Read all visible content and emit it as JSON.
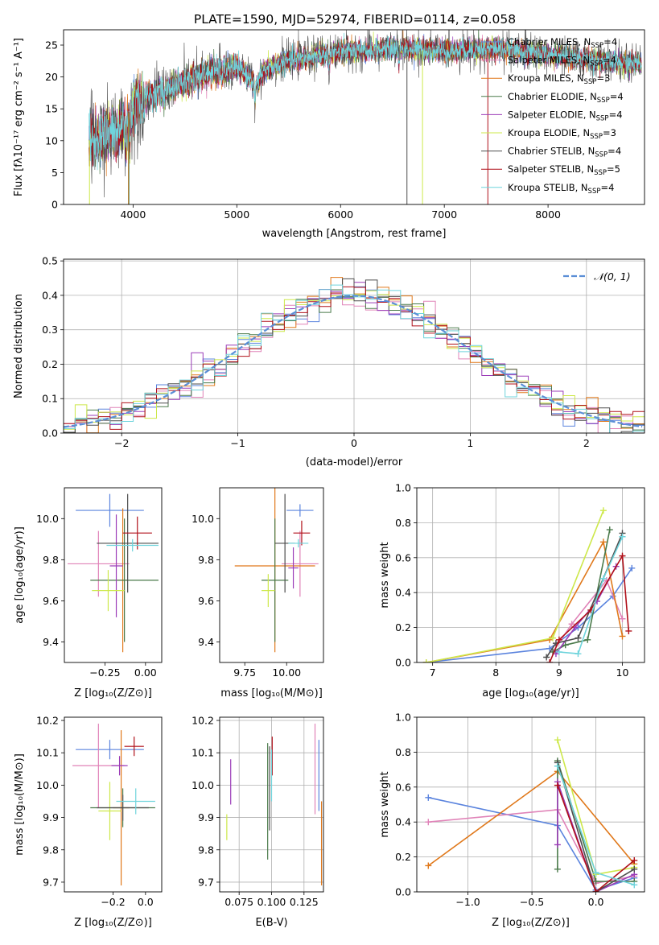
{
  "figure": {
    "title": "PLATE=1590, MJD=52974, FIBERID=0114, z=0.058"
  },
  "series": [
    {
      "key": "cm",
      "label": "Chabrier MILES, N",
      "ssp": "4",
      "color": "#5b84de"
    },
    {
      "key": "sm",
      "label": "Salpeter MILES, N",
      "ssp": "4",
      "color": "#e083b8"
    },
    {
      "key": "km",
      "label": "Kroupa MILES, N",
      "ssp": "3",
      "color": "#e0781a"
    },
    {
      "key": "ce",
      "label": "Chabrier ELODIE, N",
      "ssp": "4",
      "color": "#4a7a4a"
    },
    {
      "key": "se",
      "label": "Salpeter ELODIE, N",
      "ssp": "4",
      "color": "#9b3cb8"
    },
    {
      "key": "ke",
      "label": "Kroupa ELODIE, N",
      "ssp": "3",
      "color": "#cde84a"
    },
    {
      "key": "cs",
      "label": "Chabrier STELIB, N",
      "ssp": "4",
      "color": "#4d4d4d"
    },
    {
      "key": "ss",
      "label": "Salpeter STELIB, N",
      "ssp": "5",
      "color": "#b0101a"
    },
    {
      "key": "ks",
      "label": "Kroupa STELIB, N",
      "ssp": "4",
      "color": "#6fd4dc"
    }
  ],
  "chart_data": [
    {
      "id": "spectrum",
      "type": "line",
      "xlabel": "wavelength [Angstrom, rest frame]",
      "ylabel": "Flux [fλ10⁻¹⁷ erg cm⁻² s⁻¹ A⁻¹]",
      "xlim": [
        3330,
        8930
      ],
      "ylim": [
        0,
        27.4
      ],
      "xticks": [
        4000,
        5000,
        6000,
        7000,
        8000
      ],
      "yticks": [
        0,
        5,
        10,
        15,
        20,
        25
      ],
      "grid": false,
      "legend": "right",
      "data_range": [
        3575,
        8900
      ],
      "continuum": [
        [
          3575,
          10
        ],
        [
          3700,
          11
        ],
        [
          3850,
          11
        ],
        [
          3920,
          13.5
        ],
        [
          4000,
          15.5
        ],
        [
          4200,
          17.5
        ],
        [
          4400,
          18.5
        ],
        [
          4600,
          20
        ],
        [
          4800,
          21
        ],
        [
          5000,
          21.5
        ],
        [
          5200,
          19
        ],
        [
          5250,
          21
        ],
        [
          5500,
          22.5
        ],
        [
          6000,
          24
        ],
        [
          6200,
          24
        ],
        [
          6500,
          24.5
        ],
        [
          7000,
          24
        ],
        [
          7500,
          24.5
        ],
        [
          8000,
          23.5
        ],
        [
          8500,
          22.5
        ],
        [
          8900,
          22
        ]
      ],
      "absorption": [
        [
          3933,
          5
        ],
        [
          3968,
          5
        ],
        [
          4101,
          2.5
        ],
        [
          4300,
          1.5
        ],
        [
          4861,
          1.5
        ],
        [
          5175,
          3
        ],
        [
          5890,
          2
        ],
        [
          6563,
          2
        ]
      ],
      "spikes": [
        [
          3580,
          "ke"
        ],
        [
          3955,
          "km"
        ],
        [
          3960,
          "ce"
        ],
        [
          6640,
          "cs"
        ],
        [
          6790,
          "ke"
        ],
        [
          7420,
          "ss"
        ]
      ]
    },
    {
      "id": "residuals",
      "type": "histogram",
      "xlabel": "(data-model)/error",
      "ylabel": "Normed distribution",
      "xlim": [
        -2.5,
        2.5
      ],
      "ylim": [
        0,
        0.505
      ],
      "xticks": [
        -2,
        -1,
        0,
        1,
        2
      ],
      "yticks": [
        0,
        0.1,
        0.2,
        0.3,
        0.4,
        0.5
      ],
      "xtick_labels": [
        "−2",
        "−1",
        "0",
        "1",
        "2"
      ],
      "ytick_labels": [
        "0.0",
        "0.1",
        "0.2",
        "0.3",
        "0.4",
        "0.5"
      ],
      "grid": true,
      "legend": "top-right",
      "legend_label": "𝒩(0, 1)",
      "normal_color": "#5b8fd6",
      "bin_width": 0.1
    },
    {
      "id": "age_vs_Z",
      "type": "errorbar",
      "xlabel": "Z [log₁₀(Z/Z⊙)]",
      "ylabel": "age  [log₁₀(age/yr)]",
      "xlim": [
        -0.5,
        0.1
      ],
      "ylim": [
        9.3,
        10.15
      ],
      "xticks": [
        -0.25,
        0.0
      ],
      "xtick_labels": [
        "−0.25",
        "0.00"
      ],
      "yticks": [
        9.4,
        9.6,
        9.8,
        10.0
      ],
      "ytick_labels": [
        "9.4",
        "9.6",
        "9.8",
        "10.0"
      ],
      "grid": false,
      "points": [
        {
          "s": "cm",
          "x": -0.22,
          "xe": 0.21,
          "y": 10.04,
          "ye": 0.08
        },
        {
          "s": "sm",
          "x": -0.29,
          "xe": 0.19,
          "y": 9.78,
          "ye": 0.16
        },
        {
          "s": "km",
          "x": -0.14,
          "xe": 0.03,
          "y": 9.7,
          "ye": 0.35
        },
        {
          "s": "ce",
          "x": -0.13,
          "xe": 0.21,
          "y": 9.7,
          "ye": 0.3
        },
        {
          "s": "se",
          "x": -0.18,
          "xe": 0.04,
          "y": 9.77,
          "ye": 0.25
        },
        {
          "s": "ke",
          "x": -0.23,
          "xe": 0.1,
          "y": 9.65,
          "ye": 0.1
        },
        {
          "s": "cs",
          "x": -0.11,
          "xe": 0.19,
          "y": 9.88,
          "ye": 0.24
        },
        {
          "s": "ss",
          "x": -0.05,
          "xe": 0.09,
          "y": 9.93,
          "ye": 0.08
        },
        {
          "s": "ks",
          "x": -0.08,
          "xe": 0.16,
          "y": 9.87,
          "ye": 0.03
        }
      ]
    },
    {
      "id": "age_vs_mass",
      "type": "errorbar",
      "xlabel": "mass [log₁₀(M/M⊙)]",
      "ylabel": "",
      "xlim": [
        9.6,
        10.22
      ],
      "ylim": [
        9.3,
        10.15
      ],
      "xticks": [
        9.75,
        10.0
      ],
      "xtick_labels": [
        "9.75",
        "10.00"
      ],
      "yticks": [
        9.4,
        9.6,
        9.8,
        10.0
      ],
      "ytick_labels": [
        "9.4",
        "9.6",
        "9.8",
        "10.0"
      ],
      "grid": false,
      "points": [
        {
          "s": "cm",
          "x": 10.08,
          "xe": 0.08,
          "y": 10.04,
          "ye": 0.03
        },
        {
          "s": "sm",
          "x": 10.08,
          "xe": 0.11,
          "y": 9.78,
          "ye": 0.16
        },
        {
          "s": "km",
          "x": 9.93,
          "xe": 0.24,
          "y": 9.77,
          "ye": 0.42
        },
        {
          "s": "ce",
          "x": 9.93,
          "xe": 0.08,
          "y": 9.7,
          "ye": 0.3
        },
        {
          "s": "se",
          "x": 10.04,
          "xe": 0.03,
          "y": 9.76,
          "ye": 0.1
        },
        {
          "s": "ke",
          "x": 9.89,
          "xe": 0.04,
          "y": 9.65,
          "ye": 0.08
        },
        {
          "s": "cs",
          "x": 9.99,
          "xe": 0.06,
          "y": 9.88,
          "ye": 0.24
        },
        {
          "s": "ss",
          "x": 10.09,
          "xe": 0.05,
          "y": 9.93,
          "ye": 0.06
        },
        {
          "s": "ks",
          "x": 10.07,
          "xe": 0.06,
          "y": 9.88,
          "ye": 0.02
        }
      ]
    },
    {
      "id": "weight_vs_age",
      "type": "line",
      "xlabel": "age  [log₁₀(age/yr)]",
      "ylabel": "mass weight",
      "xlim": [
        6.75,
        10.35
      ],
      "ylim": [
        0,
        1
      ],
      "xticks": [
        7,
        8,
        9,
        10
      ],
      "xtick_labels": [
        "7",
        "8",
        "9",
        "10"
      ],
      "yticks": [
        0,
        0.2,
        0.4,
        0.6,
        0.8,
        1.0
      ],
      "ytick_labels": [
        "0.0",
        "0.2",
        "0.4",
        "0.6",
        "0.8",
        "1.0"
      ],
      "grid": true,
      "lines": [
        {
          "s": "cm",
          "pts": [
            [
              6.9,
              0
            ],
            [
              8.85,
              0.08
            ],
            [
              9.3,
              0.2
            ],
            [
              9.85,
              0.38
            ],
            [
              10.15,
              0.54
            ]
          ]
        },
        {
          "s": "sm",
          "pts": [
            [
              8.9,
              0.06
            ],
            [
              9.2,
              0.22
            ],
            [
              9.75,
              0.47
            ],
            [
              10.0,
              0.25
            ]
          ]
        },
        {
          "s": "km",
          "pts": [
            [
              6.9,
              0
            ],
            [
              8.85,
              0.13
            ],
            [
              9.7,
              0.69
            ],
            [
              10.0,
              0.15
            ]
          ]
        },
        {
          "s": "ce",
          "pts": [
            [
              8.9,
              0.06
            ],
            [
              9.1,
              0.1
            ],
            [
              9.45,
              0.13
            ],
            [
              9.8,
              0.76
            ]
          ]
        },
        {
          "s": "se",
          "pts": [
            [
              8.95,
              0.05
            ],
            [
              9.25,
              0.2
            ],
            [
              9.6,
              0.35
            ],
            [
              9.9,
              0.55
            ]
          ]
        },
        {
          "s": "ke",
          "pts": [
            [
              6.9,
              0
            ],
            [
              8.9,
              0.14
            ],
            [
              9.7,
              0.87
            ]
          ]
        },
        {
          "s": "cs",
          "pts": [
            [
              8.8,
              0.03
            ],
            [
              8.95,
              0.11
            ],
            [
              9.3,
              0.14
            ],
            [
              10.0,
              0.74
            ]
          ]
        },
        {
          "s": "ss",
          "pts": [
            [
              8.85,
              0
            ],
            [
              9.0,
              0.13
            ],
            [
              9.5,
              0.3
            ],
            [
              10.0,
              0.61
            ],
            [
              10.1,
              0.18
            ]
          ]
        },
        {
          "s": "ks",
          "pts": [
            [
              9.0,
              0.06
            ],
            [
              9.3,
              0.05
            ],
            [
              9.7,
              0.48
            ],
            [
              10.0,
              0.72
            ]
          ]
        }
      ]
    },
    {
      "id": "mass_vs_Z",
      "type": "errorbar",
      "xlabel": "Z [log₁₀(Z/Z⊙)]",
      "ylabel": "mass [log₁₀(M/M⊙)]",
      "xlim": [
        -0.5,
        0.1
      ],
      "ylim": [
        9.67,
        10.21
      ],
      "xticks": [
        -0.2,
        0.0
      ],
      "xtick_labels": [
        "−0.2",
        "0.0"
      ],
      "yticks": [
        9.7,
        9.8,
        9.9,
        10.0,
        10.1,
        10.2
      ],
      "ytick_labels": [
        "9.7",
        "9.8",
        "9.9",
        "10.0",
        "10.1",
        "10.2"
      ],
      "grid": false,
      "points": [
        {
          "s": "cm",
          "x": -0.22,
          "xe": 0.21,
          "y": 10.11,
          "ye": 0.03
        },
        {
          "s": "sm",
          "x": -0.29,
          "xe": 0.16,
          "y": 10.06,
          "ye": 0.13
        },
        {
          "s": "km",
          "x": -0.15,
          "xe": 0.05,
          "y": 9.93,
          "ye": 0.24
        },
        {
          "s": "ce",
          "x": -0.14,
          "xe": 0.2,
          "y": 9.93,
          "ye": 0.06
        },
        {
          "s": "se",
          "x": -0.16,
          "xe": 0.05,
          "y": 10.06,
          "ye": 0.03
        },
        {
          "s": "ke",
          "x": -0.22,
          "xe": 0.07,
          "y": 9.92,
          "ye": 0.09
        },
        {
          "s": "cs",
          "x": -0.14,
          "xe": 0.16,
          "y": 9.93,
          "ye": 0.04
        },
        {
          "s": "ss",
          "x": -0.07,
          "xe": 0.06,
          "y": 10.12,
          "ye": 0.03
        },
        {
          "s": "ks",
          "x": -0.06,
          "xe": 0.12,
          "y": 9.95,
          "ye": 0.04
        }
      ]
    },
    {
      "id": "mass_vs_EBV",
      "type": "errorbar",
      "xlabel": "E(B-V)",
      "ylabel": "",
      "xlim": [
        0.06,
        0.14
      ],
      "ylim": [
        9.67,
        10.21
      ],
      "xticks": [
        0.075,
        0.1,
        0.125
      ],
      "xtick_labels": [
        "0.075",
        "0.100",
        "0.125"
      ],
      "yticks": [
        9.7,
        9.8,
        9.9,
        10.0,
        10.1,
        10.2
      ],
      "ytick_labels": [
        "9.7",
        "9.8",
        "9.9",
        "10.0",
        "10.1",
        "10.2"
      ],
      "grid": true,
      "points": [
        {
          "s": "cm",
          "x": 0.1365,
          "xe": 0,
          "y": 10.03,
          "ye": 0.11
        },
        {
          "s": "sm",
          "x": 0.1335,
          "xe": 0,
          "y": 10.05,
          "ye": 0.14
        },
        {
          "s": "km",
          "x": 0.1385,
          "xe": 0,
          "y": 9.82,
          "ye": 0.13
        },
        {
          "s": "ce",
          "x": 0.097,
          "xe": 0,
          "y": 9.95,
          "ye": 0.18
        },
        {
          "s": "se",
          "x": 0.0685,
          "xe": 0,
          "y": 10.01,
          "ye": 0.07
        },
        {
          "s": "ke",
          "x": 0.0655,
          "xe": 0,
          "y": 9.87,
          "ye": 0.04
        },
        {
          "s": "cs",
          "x": 0.0985,
          "xe": 0,
          "y": 9.99,
          "ye": 0.13
        },
        {
          "s": "ss",
          "x": 0.1005,
          "xe": 0,
          "y": 10.09,
          "ye": 0.06
        },
        {
          "s": "ks",
          "x": 0.1,
          "xe": 0,
          "y": 10.03,
          "ye": 0.08
        }
      ]
    },
    {
      "id": "weight_vs_Z",
      "type": "line",
      "xlabel": "Z [log₁₀(Z/Z⊙)]",
      "ylabel": "mass weight",
      "xlim": [
        -1.4,
        0.38
      ],
      "ylim": [
        0,
        1
      ],
      "xticks": [
        -1.0,
        -0.5,
        0.0
      ],
      "xtick_labels": [
        "−1.0",
        "−0.5",
        "0.0"
      ],
      "yticks": [
        0,
        0.2,
        0.4,
        0.6,
        0.8,
        1.0
      ],
      "ytick_labels": [
        "0.0",
        "0.2",
        "0.4",
        "0.6",
        "0.8",
        "1.0"
      ],
      "grid": true,
      "lines": [
        {
          "s": "cm",
          "pts": [
            [
              -1.31,
              0.54
            ],
            [
              -0.3,
              0.38
            ],
            [
              0.0,
              0.01
            ],
            [
              0.3,
              0.08
            ]
          ]
        },
        {
          "s": "sm",
          "pts": [
            [
              -1.31,
              0.4
            ],
            [
              -0.3,
              0.47
            ],
            [
              0.0,
              0.05
            ],
            [
              0.3,
              0.09
            ]
          ]
        },
        {
          "s": "km",
          "pts": [
            [
              -1.31,
              0.15
            ],
            [
              -0.3,
              0.69
            ],
            [
              0.3,
              0.16
            ]
          ]
        },
        {
          "s": "ce",
          "pts": [
            [
              -0.3,
              0.13
            ],
            [
              -0.3,
              0.75
            ],
            [
              0.0,
              0.06
            ],
            [
              0.3,
              0.06
            ]
          ]
        },
        {
          "s": "se",
          "pts": [
            [
              -0.3,
              0.27
            ],
            [
              -0.3,
              0.63
            ],
            [
              0.0,
              0.0
            ],
            [
              0.3,
              0.1
            ]
          ]
        },
        {
          "s": "ke",
          "pts": [
            [
              -0.3,
              0.87
            ],
            [
              0.0,
              0.1
            ],
            [
              0.3,
              0.14
            ]
          ]
        },
        {
          "s": "cs",
          "pts": [
            [
              -0.3,
              0.74
            ],
            [
              0.0,
              0.0
            ],
            [
              0.3,
              0.13
            ]
          ]
        },
        {
          "s": "ss",
          "pts": [
            [
              -0.3,
              0.61
            ],
            [
              0.0,
              0.0
            ],
            [
              0.3,
              0.18
            ]
          ]
        },
        {
          "s": "ks",
          "pts": [
            [
              -0.3,
              0.72
            ],
            [
              0.0,
              0.11
            ],
            [
              0.3,
              0.04
            ]
          ]
        }
      ]
    }
  ]
}
